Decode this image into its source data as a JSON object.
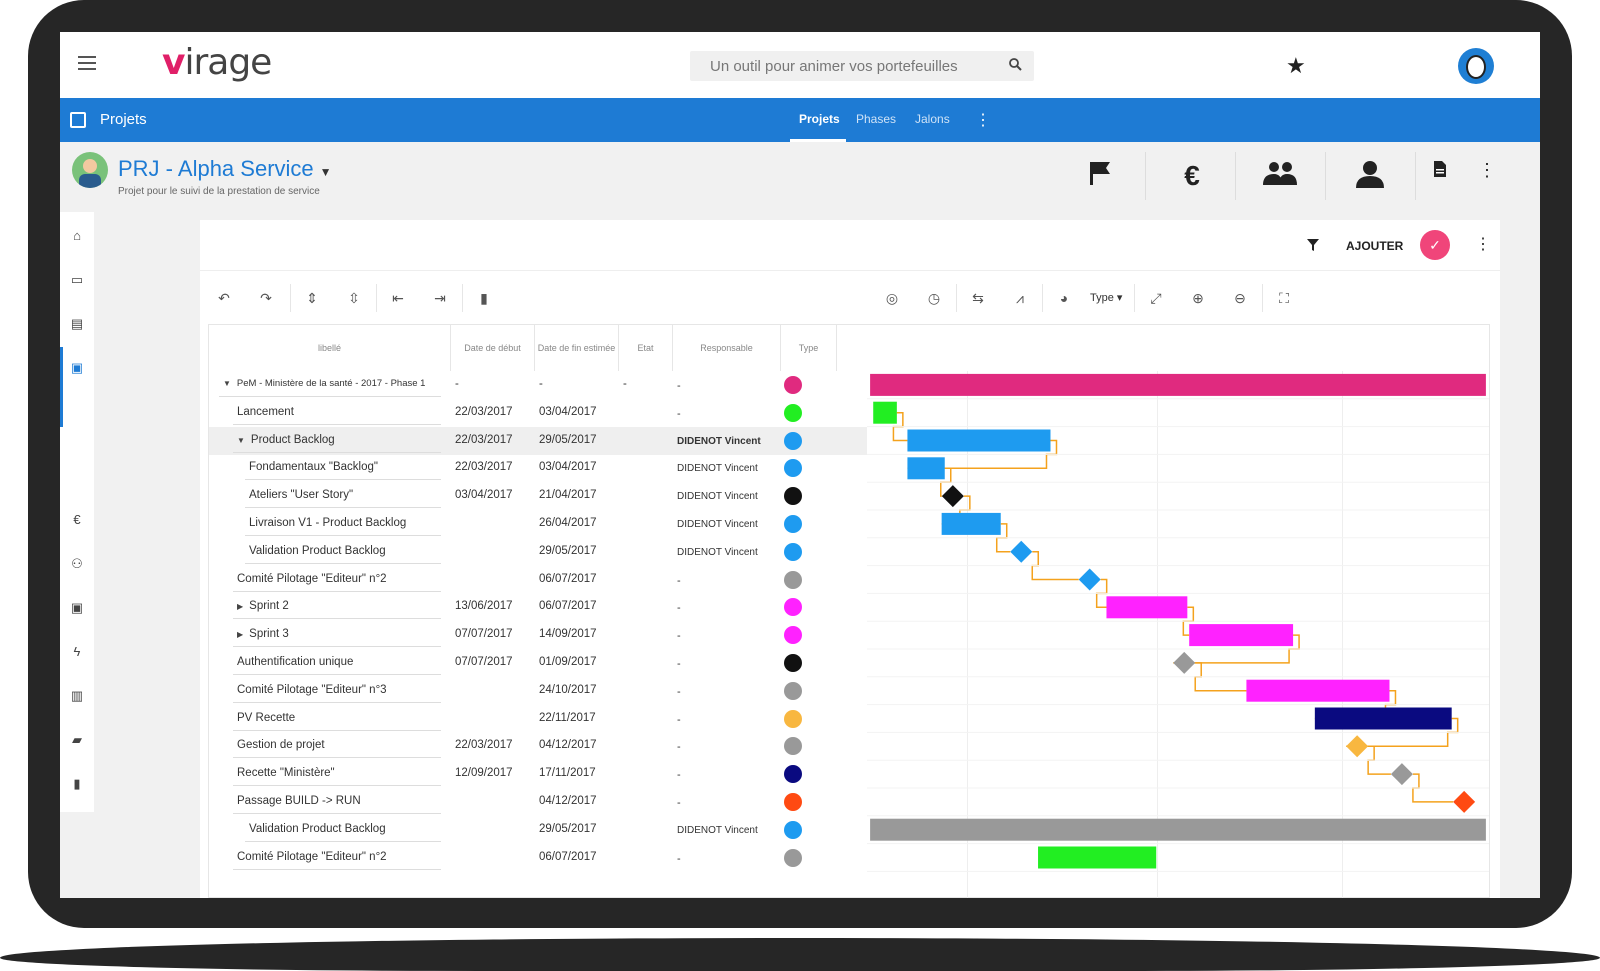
{
  "topbar": {
    "logo_v": "v",
    "logo_rest": "irage",
    "search_placeholder": "Un outil pour animer vos portefeuilles"
  },
  "navbar": {
    "section_title": "Projets",
    "tabs": [
      {
        "label": "Projets",
        "active": true
      },
      {
        "label": "Phases",
        "active": false
      },
      {
        "label": "Jalons",
        "active": false
      }
    ]
  },
  "project": {
    "name": "PRJ - Alpha Service",
    "subtitle": "Projet pour le suivi de la prestation de service",
    "header_icons": [
      "flag-icon",
      "euro-icon",
      "team-icon",
      "person-icon",
      "document-icon"
    ],
    "euro_symbol": "€"
  },
  "toolbar": {
    "add_label": "AJOUTER",
    "type_label": "Type"
  },
  "table": {
    "columns": [
      "libellé",
      "Date de début",
      "Date de fin estimée",
      "Etat",
      "Responsable",
      "Type"
    ],
    "rows": [
      {
        "label": "PeM - Ministère de la santé - 2017 - Phase 1",
        "start": "-",
        "end": "-",
        "etat": "-",
        "resp": "-",
        "color": "#e02a7f",
        "indent": 0,
        "expand": "down",
        "small": true
      },
      {
        "label": "Lancement",
        "start": "22/03/2017",
        "end": "03/04/2017",
        "etat": "",
        "resp": "-",
        "color": "#22ee22",
        "indent": 1
      },
      {
        "label": "Product Backlog",
        "start": "22/03/2017",
        "end": "29/05/2017",
        "etat": "",
        "resp": "DIDENOT Vincent",
        "color": "#1e9bf0",
        "indent": 1,
        "expand": "down",
        "bold_resp": true,
        "highlight": true
      },
      {
        "label": "Fondamentaux \"Backlog\"",
        "start": "22/03/2017",
        "end": "03/04/2017",
        "etat": "",
        "resp": "DIDENOT Vincent",
        "color": "#1e9bf0",
        "indent": 2
      },
      {
        "label": "Ateliers \"User Story\"",
        "start": "03/04/2017",
        "end": "21/04/2017",
        "etat": "",
        "resp": "DIDENOT Vincent",
        "color": "#111111",
        "indent": 2
      },
      {
        "label": "Livraison V1 - Product Backlog",
        "start": "",
        "end": "26/04/2017",
        "etat": "",
        "resp": "DIDENOT Vincent",
        "color": "#1e9bf0",
        "indent": 2
      },
      {
        "label": "Validation Product Backlog",
        "start": "",
        "end": "29/05/2017",
        "etat": "",
        "resp": "DIDENOT Vincent",
        "color": "#1e9bf0",
        "indent": 2
      },
      {
        "label": "Comité Pilotage \"Editeur\" n°2",
        "start": "",
        "end": "06/07/2017",
        "etat": "",
        "resp": "-",
        "color": "#999999",
        "indent": 1
      },
      {
        "label": "Sprint 2",
        "start": "13/06/2017",
        "end": "06/07/2017",
        "etat": "",
        "resp": "-",
        "color": "#ff22ff",
        "indent": 1,
        "expand": "right"
      },
      {
        "label": "Sprint 3",
        "start": "07/07/2017",
        "end": "14/09/2017",
        "etat": "",
        "resp": "-",
        "color": "#ff22ff",
        "indent": 1,
        "expand": "right"
      },
      {
        "label": "Authentification unique",
        "start": "07/07/2017",
        "end": "01/09/2017",
        "etat": "",
        "resp": "-",
        "color": "#111111",
        "indent": 1
      },
      {
        "label": "Comité Pilotage \"Editeur\" n°3",
        "start": "",
        "end": "24/10/2017",
        "etat": "",
        "resp": "-",
        "color": "#999999",
        "indent": 1
      },
      {
        "label": "PV Recette",
        "start": "",
        "end": "22/11/2017",
        "etat": "",
        "resp": "-",
        "color": "#f8b740",
        "indent": 1
      },
      {
        "label": "Gestion de projet",
        "start": "22/03/2017",
        "end": "04/12/2017",
        "etat": "",
        "resp": "-",
        "color": "#999999",
        "indent": 1
      },
      {
        "label": "Recette \"Ministère\"",
        "start": "12/09/2017",
        "end": "17/11/2017",
        "etat": "",
        "resp": "-",
        "color": "#0a0a80",
        "indent": 1
      },
      {
        "label": "Passage BUILD -> RUN",
        "start": "",
        "end": "04/12/2017",
        "etat": "",
        "resp": "-",
        "color": "#ff4a12",
        "indent": 1
      },
      {
        "label": "Validation Product Backlog",
        "start": "",
        "end": "29/05/2017",
        "etat": "",
        "resp": "DIDENOT Vincent",
        "color": "#1e9bf0",
        "indent": 2
      },
      {
        "label": "Comité Pilotage \"Editeur\" n°2",
        "start": "",
        "end": "06/07/2017",
        "etat": "",
        "resp": "-",
        "color": "#999999",
        "indent": 1
      }
    ]
  },
  "gantt": {
    "bars": [
      {
        "row": 0,
        "kind": "bar",
        "from": 0.005,
        "to": 0.995,
        "color": "#e02a7f"
      },
      {
        "row": 1,
        "kind": "bar",
        "from": 0.01,
        "to": 0.048,
        "color": "#22ee22"
      },
      {
        "row": 2,
        "kind": "bar",
        "from": 0.065,
        "to": 0.295,
        "color": "#1e9bf0"
      },
      {
        "row": 3,
        "kind": "bar",
        "from": 0.065,
        "to": 0.125,
        "color": "#1e9bf0"
      },
      {
        "row": 4,
        "kind": "milestone",
        "at": 0.138,
        "color": "#111111"
      },
      {
        "row": 5,
        "kind": "bar",
        "from": 0.12,
        "to": 0.215,
        "color": "#1e9bf0"
      },
      {
        "row": 6,
        "kind": "milestone",
        "at": 0.248,
        "color": "#1e9bf0"
      },
      {
        "row": 7,
        "kind": "milestone",
        "at": 0.358,
        "color": "#1e9bf0"
      },
      {
        "row": 8,
        "kind": "bar",
        "from": 0.385,
        "to": 0.515,
        "color": "#ff22ff"
      },
      {
        "row": 9,
        "kind": "bar",
        "from": 0.518,
        "to": 0.685,
        "color": "#ff22ff"
      },
      {
        "row": 10,
        "kind": "milestone",
        "at": 0.51,
        "color": "#999999"
      },
      {
        "row": 11,
        "kind": "bar",
        "from": 0.61,
        "to": 0.84,
        "color": "#ff22ff"
      },
      {
        "row": 12,
        "kind": "bar",
        "from": 0.72,
        "to": 0.94,
        "color": "#0a0a80"
      },
      {
        "row": 13,
        "kind": "milestone",
        "at": 0.788,
        "color": "#f8b740"
      },
      {
        "row": 14,
        "kind": "milestone",
        "at": 0.86,
        "color": "#999999"
      },
      {
        "row": 15,
        "kind": "milestone",
        "at": 0.96,
        "color": "#ff4a12"
      },
      {
        "row": 16,
        "kind": "bar",
        "from": 0.005,
        "to": 0.995,
        "color": "#999999"
      },
      {
        "row": 17,
        "kind": "bar",
        "from": 0.275,
        "to": 0.465,
        "color": "#22ee22"
      }
    ],
    "link_color": "#f4a21d"
  }
}
